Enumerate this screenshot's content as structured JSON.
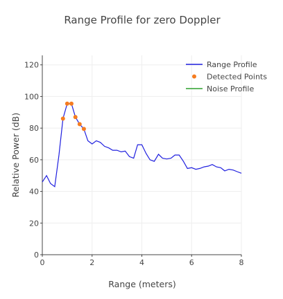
{
  "chart_data": {
    "type": "line",
    "title": "Range Profile for zero Doppler",
    "xlabel": "Range (meters)",
    "ylabel": "Relative Power (dB)",
    "xlim": [
      0,
      8
    ],
    "ylim": [
      0,
      126
    ],
    "x_ticks": [
      0,
      2,
      4,
      6,
      8
    ],
    "y_ticks": [
      0,
      20,
      40,
      60,
      80,
      100,
      120
    ],
    "grid": true,
    "legend_position": "top-right",
    "series": [
      {
        "name": "Range Profile",
        "kind": "line",
        "color": "#1f1fdf",
        "x": [
          0.0,
          0.17,
          0.33,
          0.5,
          0.67,
          0.83,
          1.0,
          1.17,
          1.33,
          1.5,
          1.67,
          1.83,
          2.0,
          2.17,
          2.33,
          2.5,
          2.67,
          2.83,
          3.0,
          3.17,
          3.33,
          3.5,
          3.67,
          3.83,
          4.0,
          4.17,
          4.33,
          4.5,
          4.67,
          4.83,
          5.0,
          5.17,
          5.33,
          5.5,
          5.67,
          5.83,
          6.0,
          6.17,
          6.33,
          6.5,
          6.67,
          6.83,
          7.0,
          7.17,
          7.33,
          7.5,
          7.67,
          7.83,
          8.0
        ],
        "y": [
          46,
          50,
          45,
          43,
          63,
          86,
          95.5,
          95.5,
          87,
          82.5,
          79.5,
          72,
          70,
          72,
          71,
          68.5,
          67.5,
          66,
          66,
          65,
          65.5,
          62,
          61,
          69.5,
          69.5,
          64,
          60,
          59,
          63.5,
          61,
          60.5,
          61,
          63,
          63,
          59,
          54.5,
          55,
          54,
          54.5,
          55.5,
          56,
          57,
          55.5,
          55,
          53,
          54,
          53.5,
          52.5,
          51.5
        ]
      },
      {
        "name": "Detected Points",
        "kind": "markers",
        "color": "#f57c20",
        "x": [
          0.83,
          1.0,
          1.17,
          1.33,
          1.5,
          1.67
        ],
        "y": [
          86,
          95.5,
          95.5,
          87,
          82.5,
          79.5
        ]
      },
      {
        "name": "Noise Profile",
        "kind": "line",
        "color": "#2ca02c",
        "x": [],
        "y": []
      }
    ]
  }
}
